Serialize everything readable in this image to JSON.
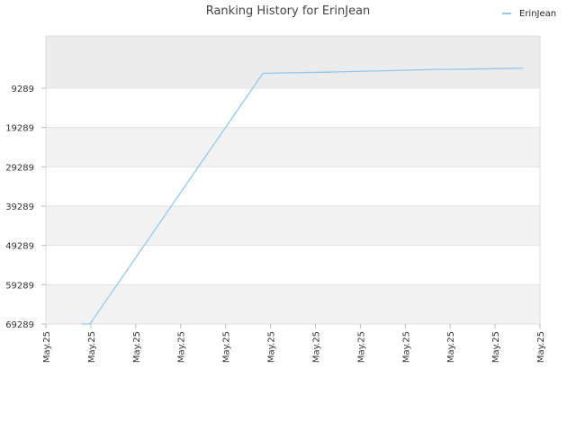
{
  "chart_data": {
    "type": "line",
    "title": "Ranking History for ErinJean",
    "xlabel": "",
    "ylabel": "",
    "y_inverted": true,
    "ylim": [
      69289,
      -4000
    ],
    "yticks": [
      9289,
      19289,
      29289,
      39289,
      49289,
      59289,
      69289
    ],
    "yticklabels": [
      "9289",
      "19289",
      "29289",
      "39289",
      "49289",
      "59289",
      "69289"
    ],
    "xticklabels": [
      "May.25",
      "May.25",
      "May.25",
      "May.25",
      "May.25",
      "May.25",
      "May.25",
      "May.25",
      "May.25",
      "May.25",
      "May.25",
      "May.25"
    ],
    "xlim": [
      0,
      11
    ],
    "grid": "horizontal bands",
    "legend_position": "top-right",
    "series": [
      {
        "name": "ErinJean",
        "color": "#90c8f0",
        "x": [
          0.8,
          0.98,
          4.83,
          5.3,
          6.23,
          7.73,
          8.7,
          9.5,
          10.63
        ],
        "y": [
          69289,
          69289,
          5500,
          5400,
          5200,
          4800,
          4500,
          4400,
          4200
        ]
      }
    ]
  }
}
